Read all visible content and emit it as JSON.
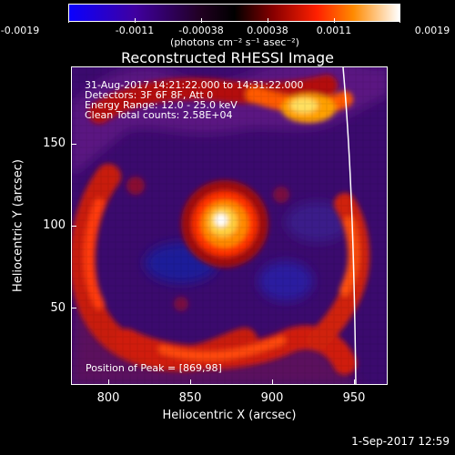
{
  "colorbar": {
    "ticks": [
      "-0.0019",
      "-0.0011",
      "-0.00038",
      "0.00038",
      "0.0011",
      "0.0019"
    ],
    "units": "(photons cm⁻² s⁻¹ asec⁻²)"
  },
  "title": "Reconstructed RHESSI Image",
  "info": {
    "line1": "31-Aug-2017 14:21:22.000 to 14:31:22.000",
    "line2": "Detectors: 3F 6F 8F, Att 0",
    "line3": "Energy Range: 12.0 - 25.0 keV",
    "line4": "Clean     Total counts: 2.58E+04"
  },
  "peak": "Position of Peak = [869,98]",
  "axes": {
    "xlabel": "Heliocentric X (arcsec)",
    "ylabel": "Heliocentric Y (arcsec)",
    "xticks": [
      "800",
      "850",
      "900",
      "950"
    ],
    "yticks": [
      "150",
      "100",
      "50"
    ]
  },
  "footer": "1-Sep-2017 12:59"
}
